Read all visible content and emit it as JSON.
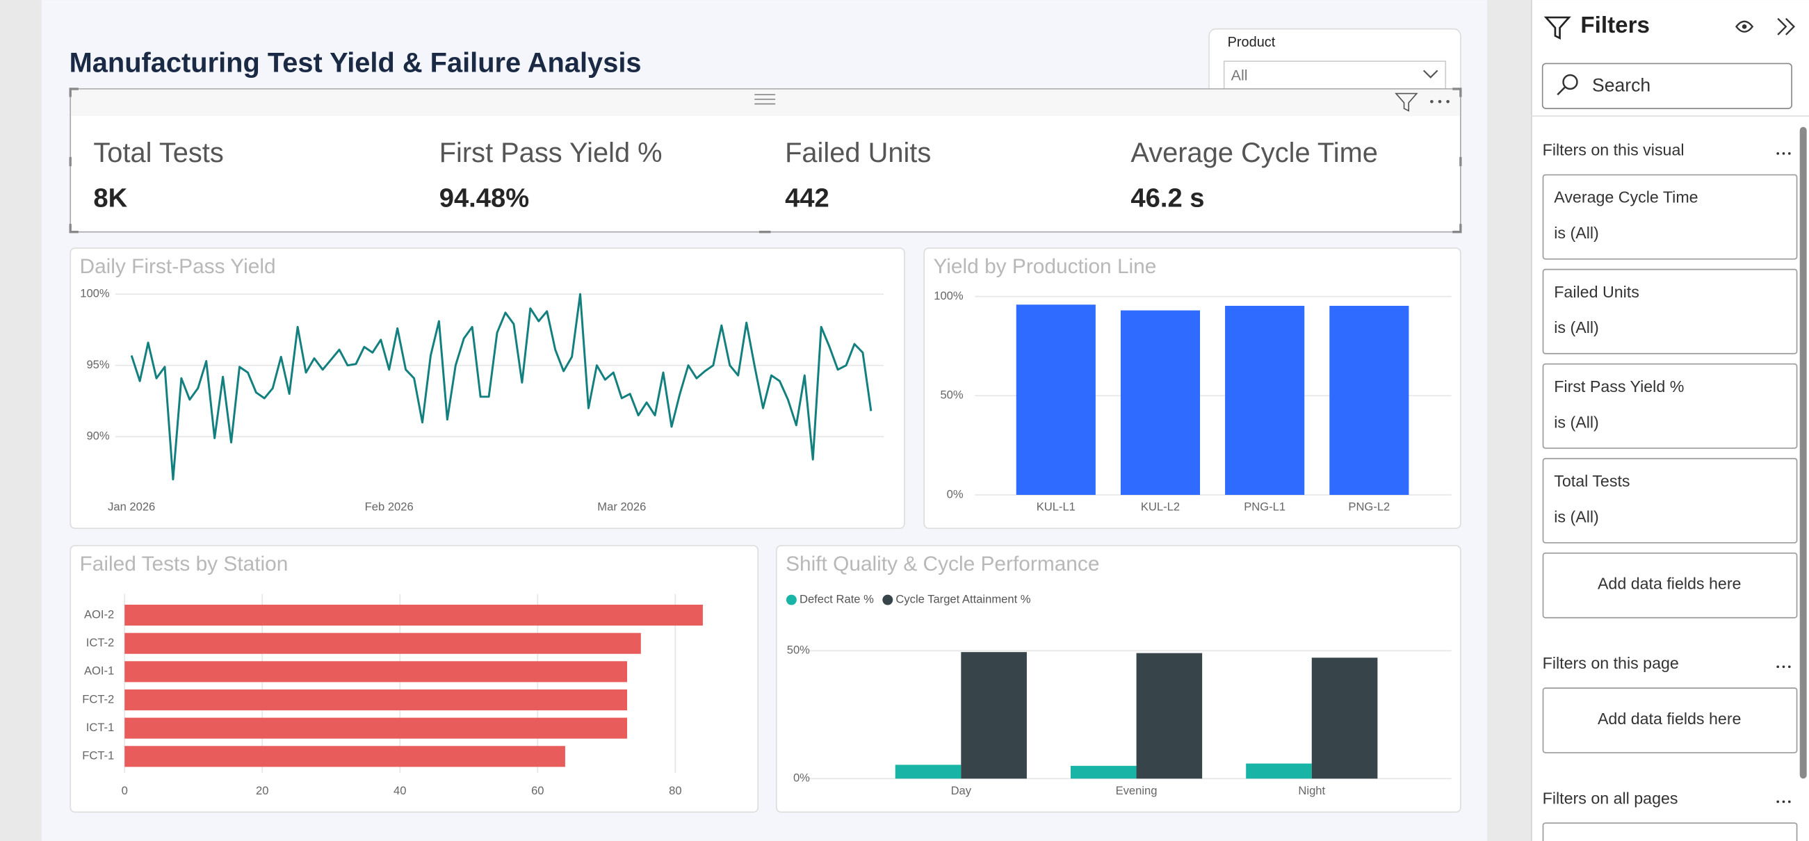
{
  "header": {
    "title": "Manufacturing Test Yield & Failure Analysis"
  },
  "slicer": {
    "label": "Product",
    "value": "All"
  },
  "kpis": [
    {
      "label": "Total Tests",
      "value": "8K"
    },
    {
      "label": "First Pass Yield %",
      "value": "94.48%"
    },
    {
      "label": "Failed Units",
      "value": "442"
    },
    {
      "label": "Average Cycle Time",
      "value": "46.2 s"
    }
  ],
  "chart_data": [
    {
      "type": "line",
      "title": "Daily First-Pass Yield",
      "color": "#13807f",
      "values": [
        95.7,
        93.9,
        96.6,
        94.1,
        94.9,
        87.0,
        94.1,
        92.6,
        93.4,
        95.3,
        89.9,
        94.2,
        89.6,
        94.9,
        94.5,
        93.1,
        92.7,
        93.4,
        95.6,
        93.0,
        97.7,
        94.5,
        95.5,
        94.7,
        95.4,
        96.1,
        95.0,
        95.1,
        96.3,
        95.9,
        96.8,
        94.7,
        97.6,
        94.7,
        94.1,
        91.0,
        95.7,
        98.1,
        91.2,
        95.0,
        96.9,
        97.7,
        92.8,
        92.8,
        97.3,
        98.7,
        97.9,
        93.8,
        99.0,
        98.1,
        98.8,
        96.1,
        94.6,
        95.6,
        100.0,
        92.0,
        95.0,
        94.0,
        94.5,
        92.7,
        93.0,
        91.5,
        92.4,
        91.5,
        94.5,
        90.7,
        93.0,
        95.0,
        94.1,
        94.6,
        95.0,
        97.8,
        95.0,
        94.3,
        98.0,
        94.9,
        92.0,
        94.3,
        93.9,
        92.6,
        90.8,
        94.3,
        88.4,
        97.7,
        96.3,
        94.7,
        95.0,
        96.5,
        95.9,
        91.8
      ],
      "xlim": [
        0,
        89
      ],
      "xticks": [
        {
          "value": 0,
          "label": "Jan 2026"
        },
        {
          "value": 31,
          "label": "Feb 2026"
        },
        {
          "value": 59,
          "label": "Mar 2026"
        }
      ],
      "ylim": [
        86.4,
        100.4
      ],
      "yticks": [
        {
          "value": 90,
          "label": "90%"
        },
        {
          "value": 95,
          "label": "95%"
        },
        {
          "value": 100,
          "label": "100%"
        }
      ],
      "grid": true
    },
    {
      "type": "bar",
      "title": "Yield by Production Line",
      "color": "#2f6bff",
      "categories": [
        "KUL-L1",
        "KUL-L2",
        "PNG-L1",
        "PNG-L2"
      ],
      "values": [
        95.9,
        93.0,
        95.3,
        95.3
      ],
      "ylim": [
        0,
        100
      ],
      "yticks": [
        {
          "value": 0,
          "label": "0%"
        },
        {
          "value": 50,
          "label": "50%"
        },
        {
          "value": 100,
          "label": "100%"
        }
      ],
      "grid": true
    },
    {
      "type": "bar",
      "orientation": "horizontal",
      "title": "Failed Tests by Station",
      "color": "#e85c5c",
      "categories": [
        "AOI-2",
        "ICT-2",
        "AOI-1",
        "FCT-2",
        "ICT-1",
        "FCT-1"
      ],
      "values": [
        84,
        75,
        73,
        73,
        73,
        64
      ],
      "xlim": [
        0,
        90
      ],
      "xticks": [
        0,
        20,
        40,
        60,
        80
      ],
      "grid": true
    },
    {
      "type": "bar",
      "title": "Shift Quality & Cycle Performance",
      "categories": [
        "Day",
        "Evening",
        "Night"
      ],
      "series": [
        {
          "name": "Defect Rate %",
          "color": "#18b5a6",
          "values": [
            5.4,
            5.0,
            5.9
          ]
        },
        {
          "name": "Cycle Target Attainment %",
          "color": "#37454a",
          "values": [
            49.5,
            49.1,
            47.3
          ]
        }
      ],
      "ylim": [
        0,
        60
      ],
      "yticks": [
        {
          "value": 0,
          "label": "0%"
        },
        {
          "value": 50,
          "label": "50%"
        }
      ],
      "grid": true,
      "legend": "top-left"
    }
  ],
  "filters": {
    "title": "Filters",
    "search": "Search",
    "sections": [
      {
        "title": "Filters on this visual",
        "cards": [
          {
            "name": "Average Cycle Time",
            "state": "is (All)"
          },
          {
            "name": "Failed Units",
            "state": "is (All)"
          },
          {
            "name": "First Pass Yield %",
            "state": "is (All)"
          },
          {
            "name": "Total Tests",
            "state": "is (All)"
          }
        ],
        "add": "Add data fields here"
      },
      {
        "title": "Filters on this page",
        "add": "Add data fields here"
      },
      {
        "title": "Filters on all pages"
      }
    ]
  }
}
